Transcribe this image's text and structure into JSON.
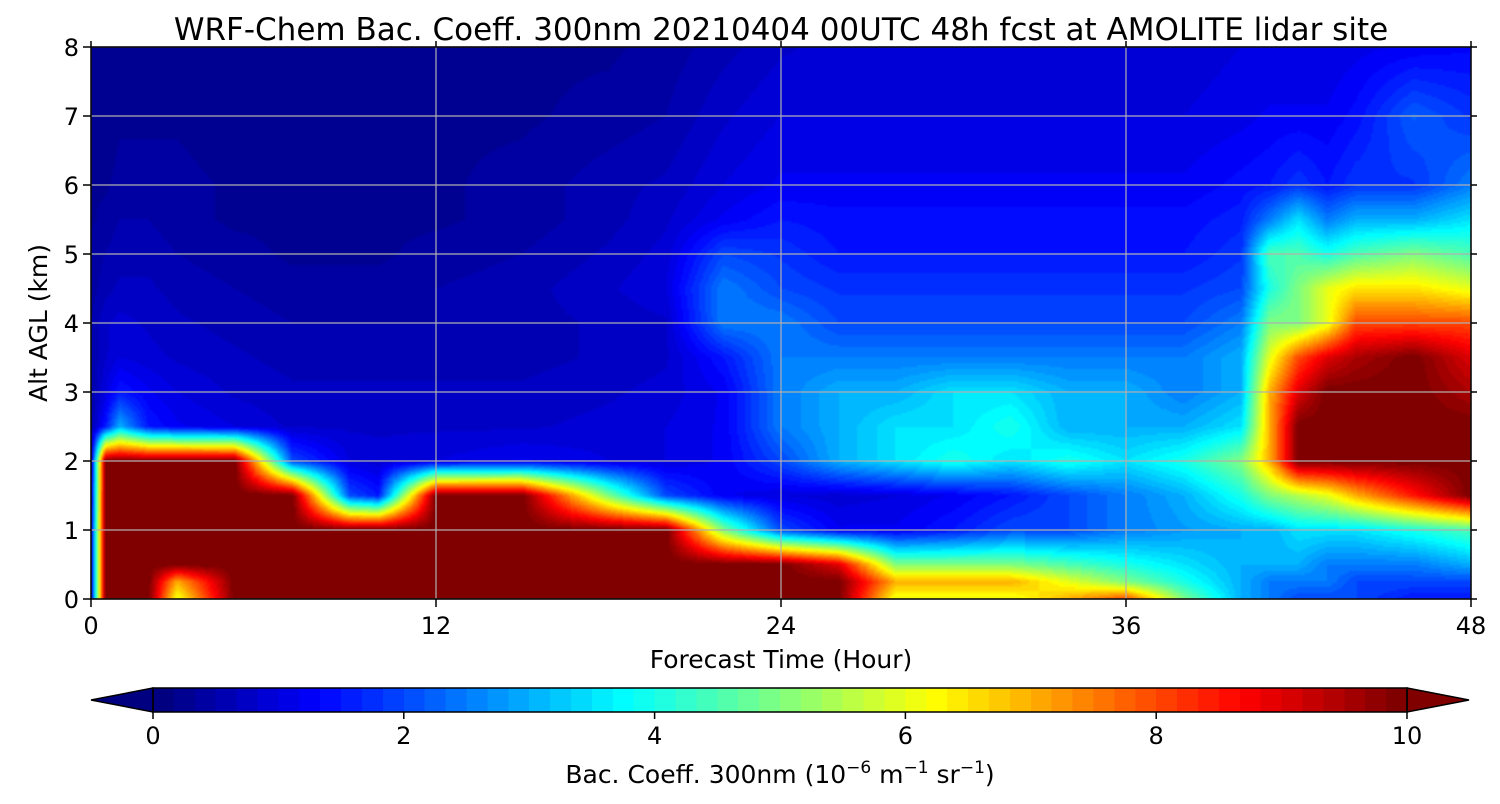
{
  "chart_data": {
    "type": "heatmap",
    "title": "WRF-Chem Bac. Coeff. 300nm  20210404 00UTC 48h fcst at AMOLITE lidar site",
    "xlabel": "Forecast Time (Hour)",
    "ylabel": "Alt AGL (km)",
    "xlim": [
      0,
      48
    ],
    "ylim": [
      0,
      8
    ],
    "x_ticks": [
      "0",
      "12",
      "24",
      "36",
      "48"
    ],
    "y_ticks": [
      "0",
      "1",
      "2",
      "3",
      "4",
      "5",
      "6",
      "7",
      "8"
    ],
    "grid": true,
    "colormap": "jet",
    "colorbar": {
      "label_main": "Bac. Coeff. 300nm  (10",
      "exp1": "−6",
      "label_mid": " m",
      "exp2": "−1",
      "label_end": " sr",
      "exp3": "−1",
      "label_close": ")",
      "range": [
        0,
        10
      ],
      "extend": "both",
      "ticks": [
        "0",
        "2",
        "4",
        "6",
        "8",
        "10"
      ]
    },
    "x": [
      0,
      0.5,
      1,
      2,
      3,
      5,
      7,
      9,
      10,
      12,
      15,
      18,
      20,
      22,
      24,
      26,
      28,
      30,
      32,
      34,
      36,
      38,
      40,
      41,
      42,
      43,
      44,
      46,
      48
    ],
    "y": [
      0,
      0.25,
      0.5,
      1,
      1.5,
      2,
      2.5,
      3,
      3.5,
      4,
      4.5,
      5,
      5.5,
      6,
      7,
      8
    ],
    "z": [
      [
        1.0,
        10,
        10,
        10,
        6,
        10,
        10,
        10,
        10,
        10,
        10,
        10,
        10,
        10,
        10,
        10,
        6,
        6,
        6,
        7,
        8,
        5,
        3,
        2.5,
        2,
        2,
        2,
        1.5,
        1.5
      ],
      [
        1.0,
        10,
        10,
        10,
        7,
        10,
        10,
        10,
        10,
        10,
        10,
        10,
        10,
        10,
        10,
        10,
        7,
        7,
        7,
        6,
        5,
        4,
        3,
        2.5,
        2.5,
        2.5,
        2,
        2,
        2
      ],
      [
        1.0,
        10,
        10,
        10,
        10,
        10,
        10,
        10,
        10,
        10,
        10,
        10,
        10,
        10,
        10,
        9,
        5,
        5,
        5,
        4.5,
        4,
        3.5,
        3,
        3,
        3,
        2.5,
        2.5,
        2.5,
        3
      ],
      [
        1.0,
        10,
        10,
        10,
        10,
        10,
        10,
        10,
        10,
        10,
        10,
        10,
        10,
        5,
        2,
        1.2,
        1.2,
        1.5,
        2,
        2,
        2.5,
        2.8,
        3,
        3,
        3.5,
        3.5,
        3.5,
        4,
        4.5
      ],
      [
        0.8,
        10,
        10,
        10,
        10,
        10,
        10,
        2,
        1.5,
        10,
        10,
        5,
        2,
        1.2,
        1.0,
        0.9,
        1.0,
        1.2,
        1.5,
        2,
        2.5,
        3,
        4,
        5,
        5.5,
        6,
        7,
        8.5,
        10
      ],
      [
        0.6,
        10,
        10,
        10,
        10,
        10,
        2,
        1.0,
        0.9,
        1.0,
        1.2,
        1.0,
        1.0,
        1.2,
        2,
        3,
        3.5,
        4,
        3.5,
        4,
        3.5,
        4,
        5,
        7,
        10,
        10,
        10,
        10,
        10
      ],
      [
        0.5,
        1.5,
        3,
        1.5,
        1.2,
        1.0,
        0.8,
        0.8,
        0.8,
        0.8,
        0.8,
        0.9,
        1.0,
        1.2,
        2.5,
        3,
        3.5,
        3.5,
        4,
        3,
        3,
        3,
        3.5,
        7,
        10,
        10,
        10,
        10,
        10
      ],
      [
        0.5,
        1.0,
        1.5,
        1.2,
        1.0,
        0.8,
        0.7,
        0.7,
        0.7,
        0.7,
        0.7,
        0.8,
        0.9,
        1.2,
        2.5,
        3,
        3,
        3.5,
        3.5,
        3,
        3,
        2.5,
        3,
        7,
        9,
        10,
        10,
        10,
        9.5
      ],
      [
        0.5,
        0.8,
        1.0,
        0.9,
        0.8,
        0.7,
        0.6,
        0.6,
        0.6,
        0.6,
        0.6,
        0.7,
        0.8,
        1.5,
        2.5,
        2.5,
        2.5,
        2.5,
        2.5,
        2.5,
        2.5,
        2.5,
        3,
        6,
        8,
        9,
        9.5,
        10,
        9
      ],
      [
        0.5,
        0.8,
        0.9,
        0.8,
        0.7,
        0.6,
        0.5,
        0.5,
        0.5,
        0.5,
        0.6,
        0.7,
        0.8,
        2.5,
        2.5,
        2,
        2,
        2,
        2,
        2,
        2,
        2,
        2.5,
        5,
        5,
        6,
        8,
        8,
        8
      ],
      [
        0.4,
        0.6,
        0.7,
        0.7,
        0.6,
        0.5,
        0.4,
        0.4,
        0.4,
        0.5,
        0.6,
        0.8,
        1.0,
        2.5,
        2,
        1.8,
        1.8,
        1.8,
        1.8,
        1.8,
        1.8,
        1.8,
        2,
        4,
        5,
        6,
        6.5,
        6.5,
        6
      ],
      [
        0.4,
        0.5,
        0.6,
        0.6,
        0.5,
        0.4,
        0.3,
        0.3,
        0.3,
        0.4,
        0.5,
        0.7,
        0.9,
        2,
        1.8,
        1.5,
        1.5,
        1.5,
        1.5,
        1.5,
        1.5,
        1.5,
        1.8,
        4.5,
        4.5,
        4,
        4.5,
        5,
        4.5
      ],
      [
        0.3,
        0.4,
        0.5,
        0.5,
        0.4,
        0.3,
        0.3,
        0.3,
        0.3,
        0.3,
        0.4,
        0.6,
        0.8,
        1.2,
        1.5,
        1.4,
        1.4,
        1.4,
        1.4,
        1.4,
        1.4,
        1.4,
        1.6,
        2.5,
        3.5,
        2.5,
        3,
        3,
        3.5
      ],
      [
        0.3,
        0.3,
        0.4,
        0.4,
        0.4,
        0.3,
        0.2,
        0.2,
        0.2,
        0.3,
        0.4,
        0.6,
        0.7,
        1.0,
        1.2,
        1.2,
        1.2,
        1.2,
        1.2,
        1.2,
        1.2,
        1.2,
        1.4,
        1.5,
        1.8,
        1.5,
        1.8,
        1.8,
        2.5
      ],
      [
        0.2,
        0.2,
        0.3,
        0.3,
        0.3,
        0.2,
        0.2,
        0.2,
        0.2,
        0.3,
        0.3,
        0.4,
        0.5,
        0.8,
        1.0,
        1.0,
        1.0,
        1.0,
        1.0,
        1.0,
        1.0,
        1.0,
        1.1,
        1.2,
        1.2,
        1.2,
        1.4,
        2.2,
        1.8
      ],
      [
        0.2,
        0.2,
        0.2,
        0.2,
        0.2,
        0.2,
        0.2,
        0.2,
        0.2,
        0.2,
        0.3,
        0.3,
        0.4,
        0.6,
        0.8,
        0.9,
        0.9,
        0.9,
        0.9,
        0.9,
        0.9,
        0.9,
        1.0,
        1.0,
        1.0,
        1.0,
        1.1,
        1.2,
        1.3
      ]
    ]
  }
}
